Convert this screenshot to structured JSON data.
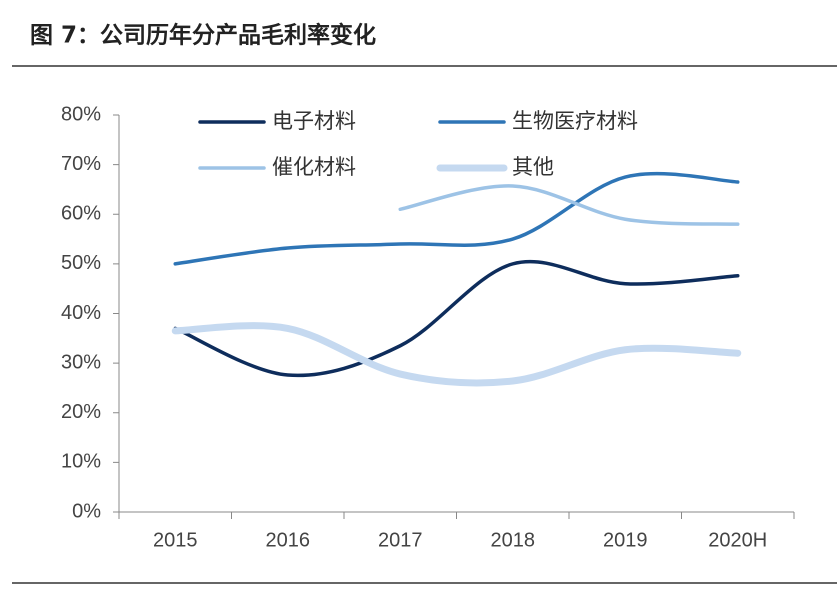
{
  "chart_data": {
    "type": "line",
    "title": "图 7：公司历年分产品毛利率变化",
    "categories": [
      "2015",
      "2016",
      "2017",
      "2018",
      "2019",
      "2020H"
    ],
    "ylim": [
      0,
      80
    ],
    "yticks": [
      {
        "value": 0,
        "label": "0%"
      },
      {
        "value": 10,
        "label": "10%"
      },
      {
        "value": 20,
        "label": "20%"
      },
      {
        "value": 30,
        "label": "30%"
      },
      {
        "value": 40,
        "label": "40%"
      },
      {
        "value": 50,
        "label": "50%"
      },
      {
        "value": 60,
        "label": "60%"
      },
      {
        "value": 70,
        "label": "70%"
      },
      {
        "value": 80,
        "label": "80%"
      }
    ],
    "series": [
      {
        "name": "电子材料",
        "color": "#0e2d5c",
        "values": [
          37,
          27.6,
          33.5,
          50,
          46,
          47.6
        ]
      },
      {
        "name": "生物医疗材料",
        "color": "#2e75b6",
        "values": [
          50,
          53.2,
          54,
          55,
          67.5,
          66.5
        ]
      },
      {
        "name": "催化材料",
        "color": "#9dc3e6",
        "values": [
          null,
          null,
          61,
          65.7,
          59,
          58
        ]
      },
      {
        "name": "其他",
        "color": "#c5d9f0",
        "values": [
          36.5,
          37,
          27.8,
          26.4,
          32.7,
          32
        ]
      }
    ]
  }
}
